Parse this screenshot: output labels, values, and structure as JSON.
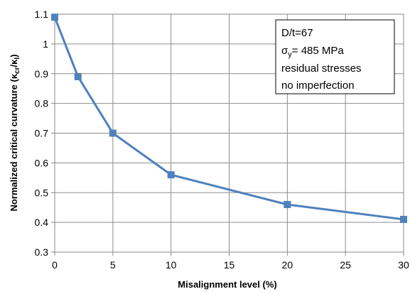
{
  "chart_data": {
    "type": "line",
    "title": "",
    "xlabel": "Misalignment level (%)",
    "ylabel_main": "Normalized critical curvature (κ",
    "ylabel_sub1": "cr",
    "ylabel_mid": "/κ",
    "ylabel_sub2": "I",
    "ylabel_end": ")",
    "xlim": [
      0,
      30
    ],
    "ylim": [
      0.3,
      1.1
    ],
    "xticks": [
      0,
      5,
      10,
      15,
      20,
      25,
      30
    ],
    "xtick_labels": [
      "0",
      "5",
      "10",
      "15",
      "20",
      "25",
      "30"
    ],
    "yticks": [
      0.3,
      0.4,
      0.5,
      0.6,
      0.7,
      0.8,
      0.9,
      1.0,
      1.1
    ],
    "ytick_labels": [
      "0.3",
      "0.4",
      "0.5",
      "0.6",
      "0.7",
      "0.8",
      "0.9",
      "1",
      "1.1"
    ],
    "grid": true,
    "series": [
      {
        "color": "#4F81BD",
        "marker": "square",
        "x": [
          0,
          2,
          5,
          10,
          20,
          30
        ],
        "y": [
          1.09,
          0.89,
          0.7,
          0.56,
          0.46,
          0.41
        ]
      }
    ],
    "annotation": {
      "line1": "D/t=67",
      "line2_symbol": "σ",
      "line2_sub": "y",
      "line2_rest": "= 485 MPa",
      "line3": "residual stresses",
      "line4": "no imperfection"
    }
  }
}
